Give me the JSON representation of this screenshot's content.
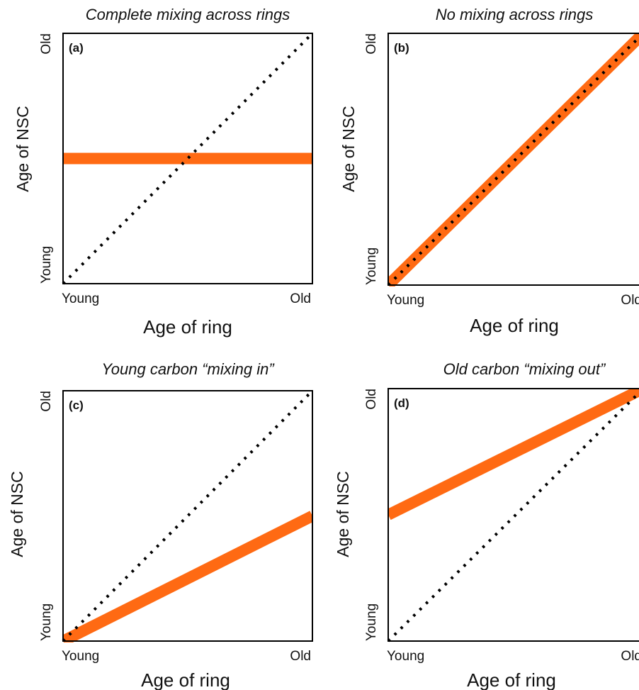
{
  "chart_data": [
    {
      "type": "line",
      "panel_label": "(a)",
      "title": "Complete mixing across rings",
      "xlabel": "Age of ring",
      "ylabel": "Age of NSC",
      "xticks": [
        "Young",
        "Old"
      ],
      "yticks": [
        "Young",
        "Old"
      ],
      "xlim": [
        0,
        1
      ],
      "ylim": [
        0,
        1
      ],
      "series": [
        {
          "style": "dotted-black",
          "x": [
            0,
            1
          ],
          "y": [
            0,
            1
          ]
        },
        {
          "style": "thick-orange",
          "x": [
            0,
            1
          ],
          "y": [
            0.5,
            0.5
          ]
        }
      ]
    },
    {
      "type": "line",
      "panel_label": "(b)",
      "title": "No mixing across rings",
      "xlabel": "Age of ring",
      "ylabel": "Age of NSC",
      "xticks": [
        "Young",
        "Old"
      ],
      "yticks": [
        "Young",
        "Old"
      ],
      "xlim": [
        0,
        1
      ],
      "ylim": [
        0,
        1
      ],
      "series": [
        {
          "style": "dotted-black",
          "x": [
            0,
            1
          ],
          "y": [
            0,
            1
          ]
        },
        {
          "style": "thick-orange",
          "x": [
            0,
            1
          ],
          "y": [
            0,
            1
          ]
        }
      ]
    },
    {
      "type": "line",
      "panel_label": "(c)",
      "title": "Young carbon “mixing in”",
      "xlabel": "Age of ring",
      "ylabel": "Age of NSC",
      "xticks": [
        "Young",
        "Old"
      ],
      "yticks": [
        "Young",
        "Old"
      ],
      "xlim": [
        0,
        1
      ],
      "ylim": [
        0,
        1
      ],
      "series": [
        {
          "style": "dotted-black",
          "x": [
            0,
            1
          ],
          "y": [
            0,
            1
          ]
        },
        {
          "style": "thick-orange",
          "x": [
            0,
            1
          ],
          "y": [
            0,
            0.5
          ]
        }
      ]
    },
    {
      "type": "line",
      "panel_label": "(d)",
      "title": "Old carbon “mixing out”",
      "xlabel": "Age of ring",
      "ylabel": "Age of NSC",
      "xticks": [
        "Young",
        "Old"
      ],
      "yticks": [
        "Young",
        "Old"
      ],
      "xlim": [
        0,
        1
      ],
      "ylim": [
        0,
        1
      ],
      "series": [
        {
          "style": "dotted-black",
          "x": [
            0,
            1
          ],
          "y": [
            0,
            1
          ]
        },
        {
          "style": "thick-orange",
          "x": [
            0,
            1
          ],
          "y": [
            0.5,
            1
          ]
        }
      ]
    }
  ],
  "colors": {
    "mixing_line": "#ff6a13",
    "reference_line": "#000000",
    "frame": "#000000"
  }
}
